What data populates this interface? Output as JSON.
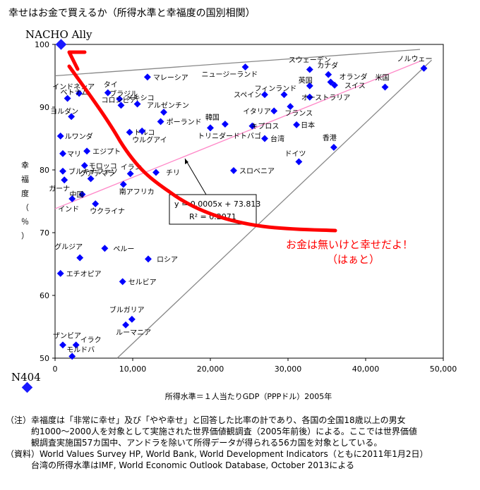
{
  "page": {
    "title": "幸せはお金で買えるか（所得水準と幸福度の国別相関）"
  },
  "meme": {
    "top_label": "NACHO Ally",
    "bottom_label": "N404",
    "annotation_line1": "お金は無いけと幸せだよ！",
    "annotation_line2": "（はぁと）",
    "marker_color": "#1a1aff",
    "line_color": "#ff0000"
  },
  "colors": {
    "points": "#0000ff",
    "trend": "#ff88c8",
    "guide": "#888888"
  },
  "chart_data": {
    "type": "scatter",
    "title": "幸せはお金で買えるか（所得水準と幸福度の国別相関）",
    "xlabel": "所得水準＝１人当たりGDP（PPPドル）2005年",
    "ylabel": "幸福度（％）",
    "xlim": [
      0,
      50000
    ],
    "ylim": [
      50,
      100
    ],
    "xticks": [
      "0",
      "10,000",
      "20,000",
      "30,000",
      "40,000",
      "50,000"
    ],
    "yticks": [
      "50",
      "60",
      "70",
      "80",
      "90",
      "100"
    ],
    "trendline": {
      "equation": "y = 0.0005x + 73.813",
      "r_squared": "R² = 0.2071"
    },
    "points": [
      {
        "name": "ノルウェー",
        "x": 47500,
        "y": 96.2
      },
      {
        "name": "スウェーデン",
        "x": 32800,
        "y": 96.0
      },
      {
        "name": "カナダ",
        "x": 35200,
        "y": 95.2
      },
      {
        "name": "ニュージーランド",
        "x": 24500,
        "y": 96.4
      },
      {
        "name": "マレーシア",
        "x": 11900,
        "y": 94.8
      },
      {
        "name": "インドネシア",
        "x": 3100,
        "y": 92.2
      },
      {
        "name": "タイ",
        "x": 6800,
        "y": 92.3
      },
      {
        "name": "ベトナム",
        "x": 1600,
        "y": 91.4
      },
      {
        "name": "ブラジル",
        "x": 8300,
        "y": 91.3
      },
      {
        "name": "メキシコ",
        "x": 10600,
        "y": 90.5
      },
      {
        "name": "英国",
        "x": 32800,
        "y": 93.4
      },
      {
        "name": "オランダ",
        "x": 35500,
        "y": 94.0
      },
      {
        "name": "スイス",
        "x": 36000,
        "y": 93.5
      },
      {
        "name": "米国",
        "x": 42500,
        "y": 93.2
      },
      {
        "name": "スペイン",
        "x": 27000,
        "y": 92.0
      },
      {
        "name": "フィンランド",
        "x": 29500,
        "y": 92.0
      },
      {
        "name": "オーストラリア",
        "x": 32800,
        "y": 91.6
      },
      {
        "name": "アルゼンチン",
        "x": 14000,
        "y": 89.2
      },
      {
        "name": "コロンビア",
        "x": 8500,
        "y": 90.3
      },
      {
        "name": "ヨルダン",
        "x": 2100,
        "y": 88.5
      },
      {
        "name": "ルワンダ",
        "x": 700,
        "y": 85.4
      },
      {
        "name": "イタリア",
        "x": 28200,
        "y": 89.4
      },
      {
        "name": "フランス",
        "x": 30300,
        "y": 90.1
      },
      {
        "name": "ポーランド",
        "x": 13600,
        "y": 87.7
      },
      {
        "name": "韓国",
        "x": 21900,
        "y": 87.3
      },
      {
        "name": "キプロス",
        "x": 25400,
        "y": 87.0
      },
      {
        "name": "日本",
        "x": 31100,
        "y": 87.2
      },
      {
        "name": "トリニダードトバゴ",
        "x": 20000,
        "y": 86.7
      },
      {
        "name": "台湾",
        "x": 27000,
        "y": 85.0
      },
      {
        "name": "トルコ",
        "x": 9600,
        "y": 86.0
      },
      {
        "name": "ウルグアイ",
        "x": 11200,
        "y": 86.2
      },
      {
        "name": "マリ",
        "x": 1000,
        "y": 82.6
      },
      {
        "name": "エジプト",
        "x": 4100,
        "y": 83.0
      },
      {
        "name": "香港",
        "x": 35900,
        "y": 83.6
      },
      {
        "name": "ドイツ",
        "x": 31400,
        "y": 81.3
      },
      {
        "name": "モロッコ",
        "x": 3800,
        "y": 80.7
      },
      {
        "name": "イラン",
        "x": 9700,
        "y": 79.4
      },
      {
        "name": "ブルキナファソ",
        "x": 1000,
        "y": 79.8
      },
      {
        "name": "チリ",
        "x": 13000,
        "y": 79.6
      },
      {
        "name": "スロベニア",
        "x": 23000,
        "y": 79.9
      },
      {
        "name": "ガーナ",
        "x": 1200,
        "y": 78.4
      },
      {
        "name": "グアテマラ",
        "x": 4600,
        "y": 78.6
      },
      {
        "name": "南アフリカ",
        "x": 8800,
        "y": 77.7
      },
      {
        "name": "中国",
        "x": 3500,
        "y": 76.1
      },
      {
        "name": "インド",
        "x": 2200,
        "y": 75.4
      },
      {
        "name": "ウクライナ",
        "x": 5200,
        "y": 74.6
      },
      {
        "name": "グルジア",
        "x": 3200,
        "y": 66.0
      },
      {
        "name": "ペルー",
        "x": 6400,
        "y": 67.5
      },
      {
        "name": "ロシア",
        "x": 12000,
        "y": 65.8
      },
      {
        "name": "エチオピア",
        "x": 700,
        "y": 63.5
      },
      {
        "name": "セルビア",
        "x": 8700,
        "y": 62.2
      },
      {
        "name": "ブルガリア",
        "x": 9900,
        "y": 56.2
      },
      {
        "name": "ルーマニア",
        "x": 9100,
        "y": 55.3
      },
      {
        "name": "ザンビア",
        "x": 1000,
        "y": 52.1
      },
      {
        "name": "イラク",
        "x": 2700,
        "y": 52.1
      },
      {
        "name": "モルドバ",
        "x": 2200,
        "y": 50.3
      }
    ]
  },
  "notes": {
    "note_line1": "（注）幸福度は「非常に幸せ」及び「やや幸せ」と回答した比率の計であり、各国の全国18歳以上の男女",
    "note_line2": "約1000～2000人を対象として実施された世界価値観調査（2005年前後）による。ここでは世界価値",
    "note_line3": "観調査実施国57カ国中、アンドラを除いて所得データが得られる56カ国を対象としている。",
    "source_line1": "（資料）World Values Survey HP, World Bank, World Development Indicators（ともに2011年1月2日）",
    "source_line2": "台湾の所得水準はIMF, World Economic Outlook Database, October 2013による"
  }
}
